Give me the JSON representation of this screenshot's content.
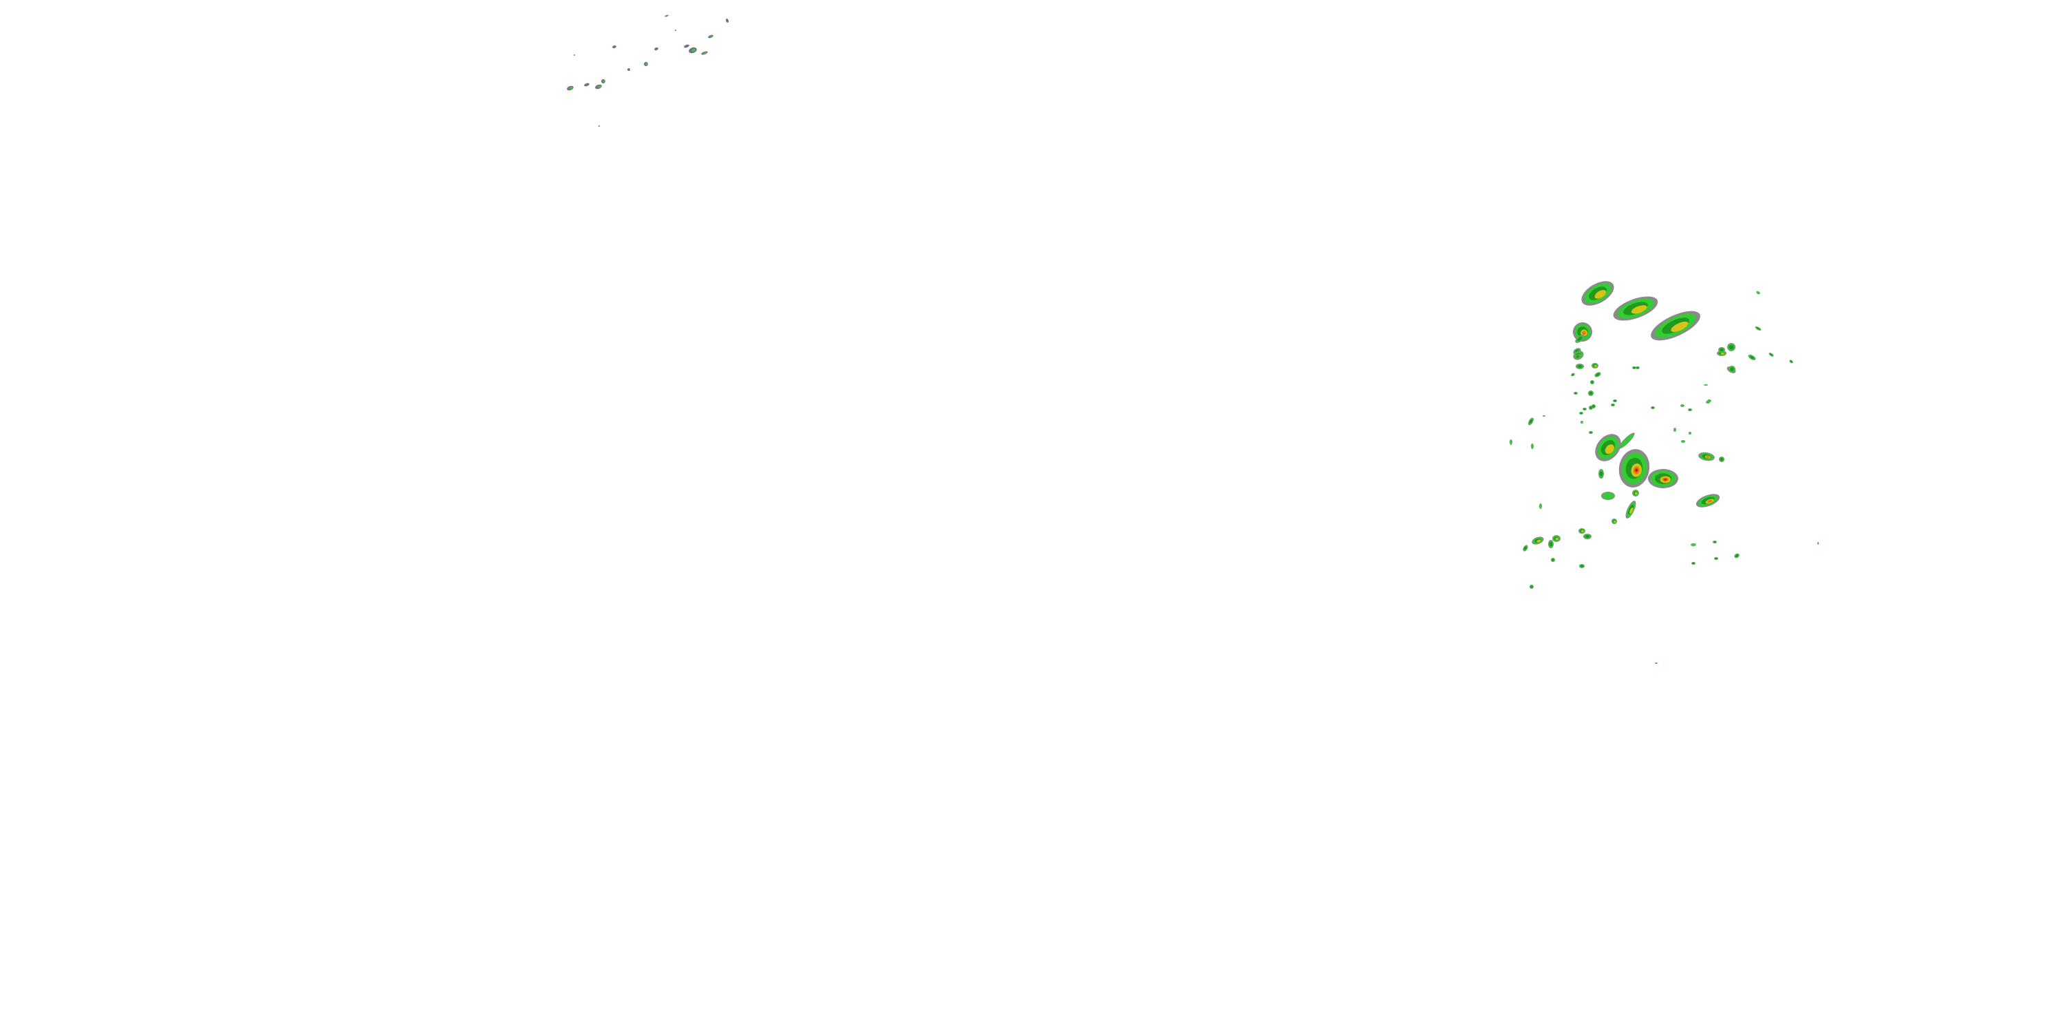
{
  "map": {
    "layer": "precipitation-radar",
    "background": "#ffffff",
    "colors": {
      "mixed_light": "#8a8a8a",
      "mixed_purple": "#7a6f86",
      "light": "#33cc33",
      "moderate": "#1f9a1f",
      "heavy": "#d8c21a",
      "intense": "#e07a10",
      "extreme": "#cc1111"
    }
  }
}
